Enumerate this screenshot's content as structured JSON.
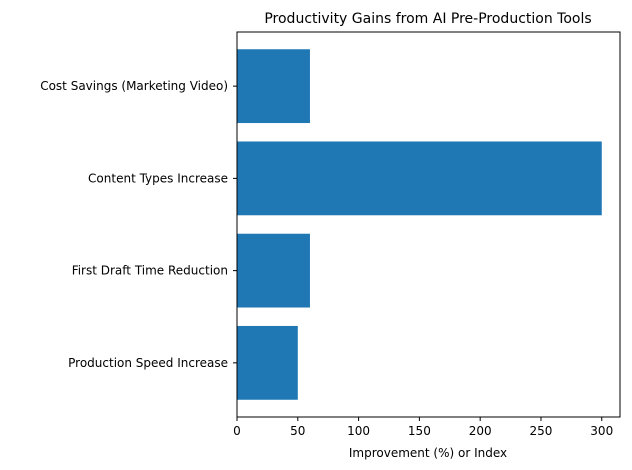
{
  "chart_data": {
    "type": "bar",
    "orientation": "horizontal",
    "title": "Productivity Gains from AI Pre-Production Tools",
    "xlabel": "Improvement (%) or Index",
    "ylabel": "",
    "categories": [
      "Production Speed Increase",
      "First Draft Time Reduction",
      "Content Types Increase",
      "Cost Savings (Marketing Video)"
    ],
    "values": [
      50,
      60,
      300,
      60
    ],
    "xlim": [
      0,
      315
    ],
    "xticks": [
      0,
      50,
      100,
      150,
      200,
      250,
      300
    ],
    "grid": false,
    "bar_color": "#1f77b4"
  }
}
